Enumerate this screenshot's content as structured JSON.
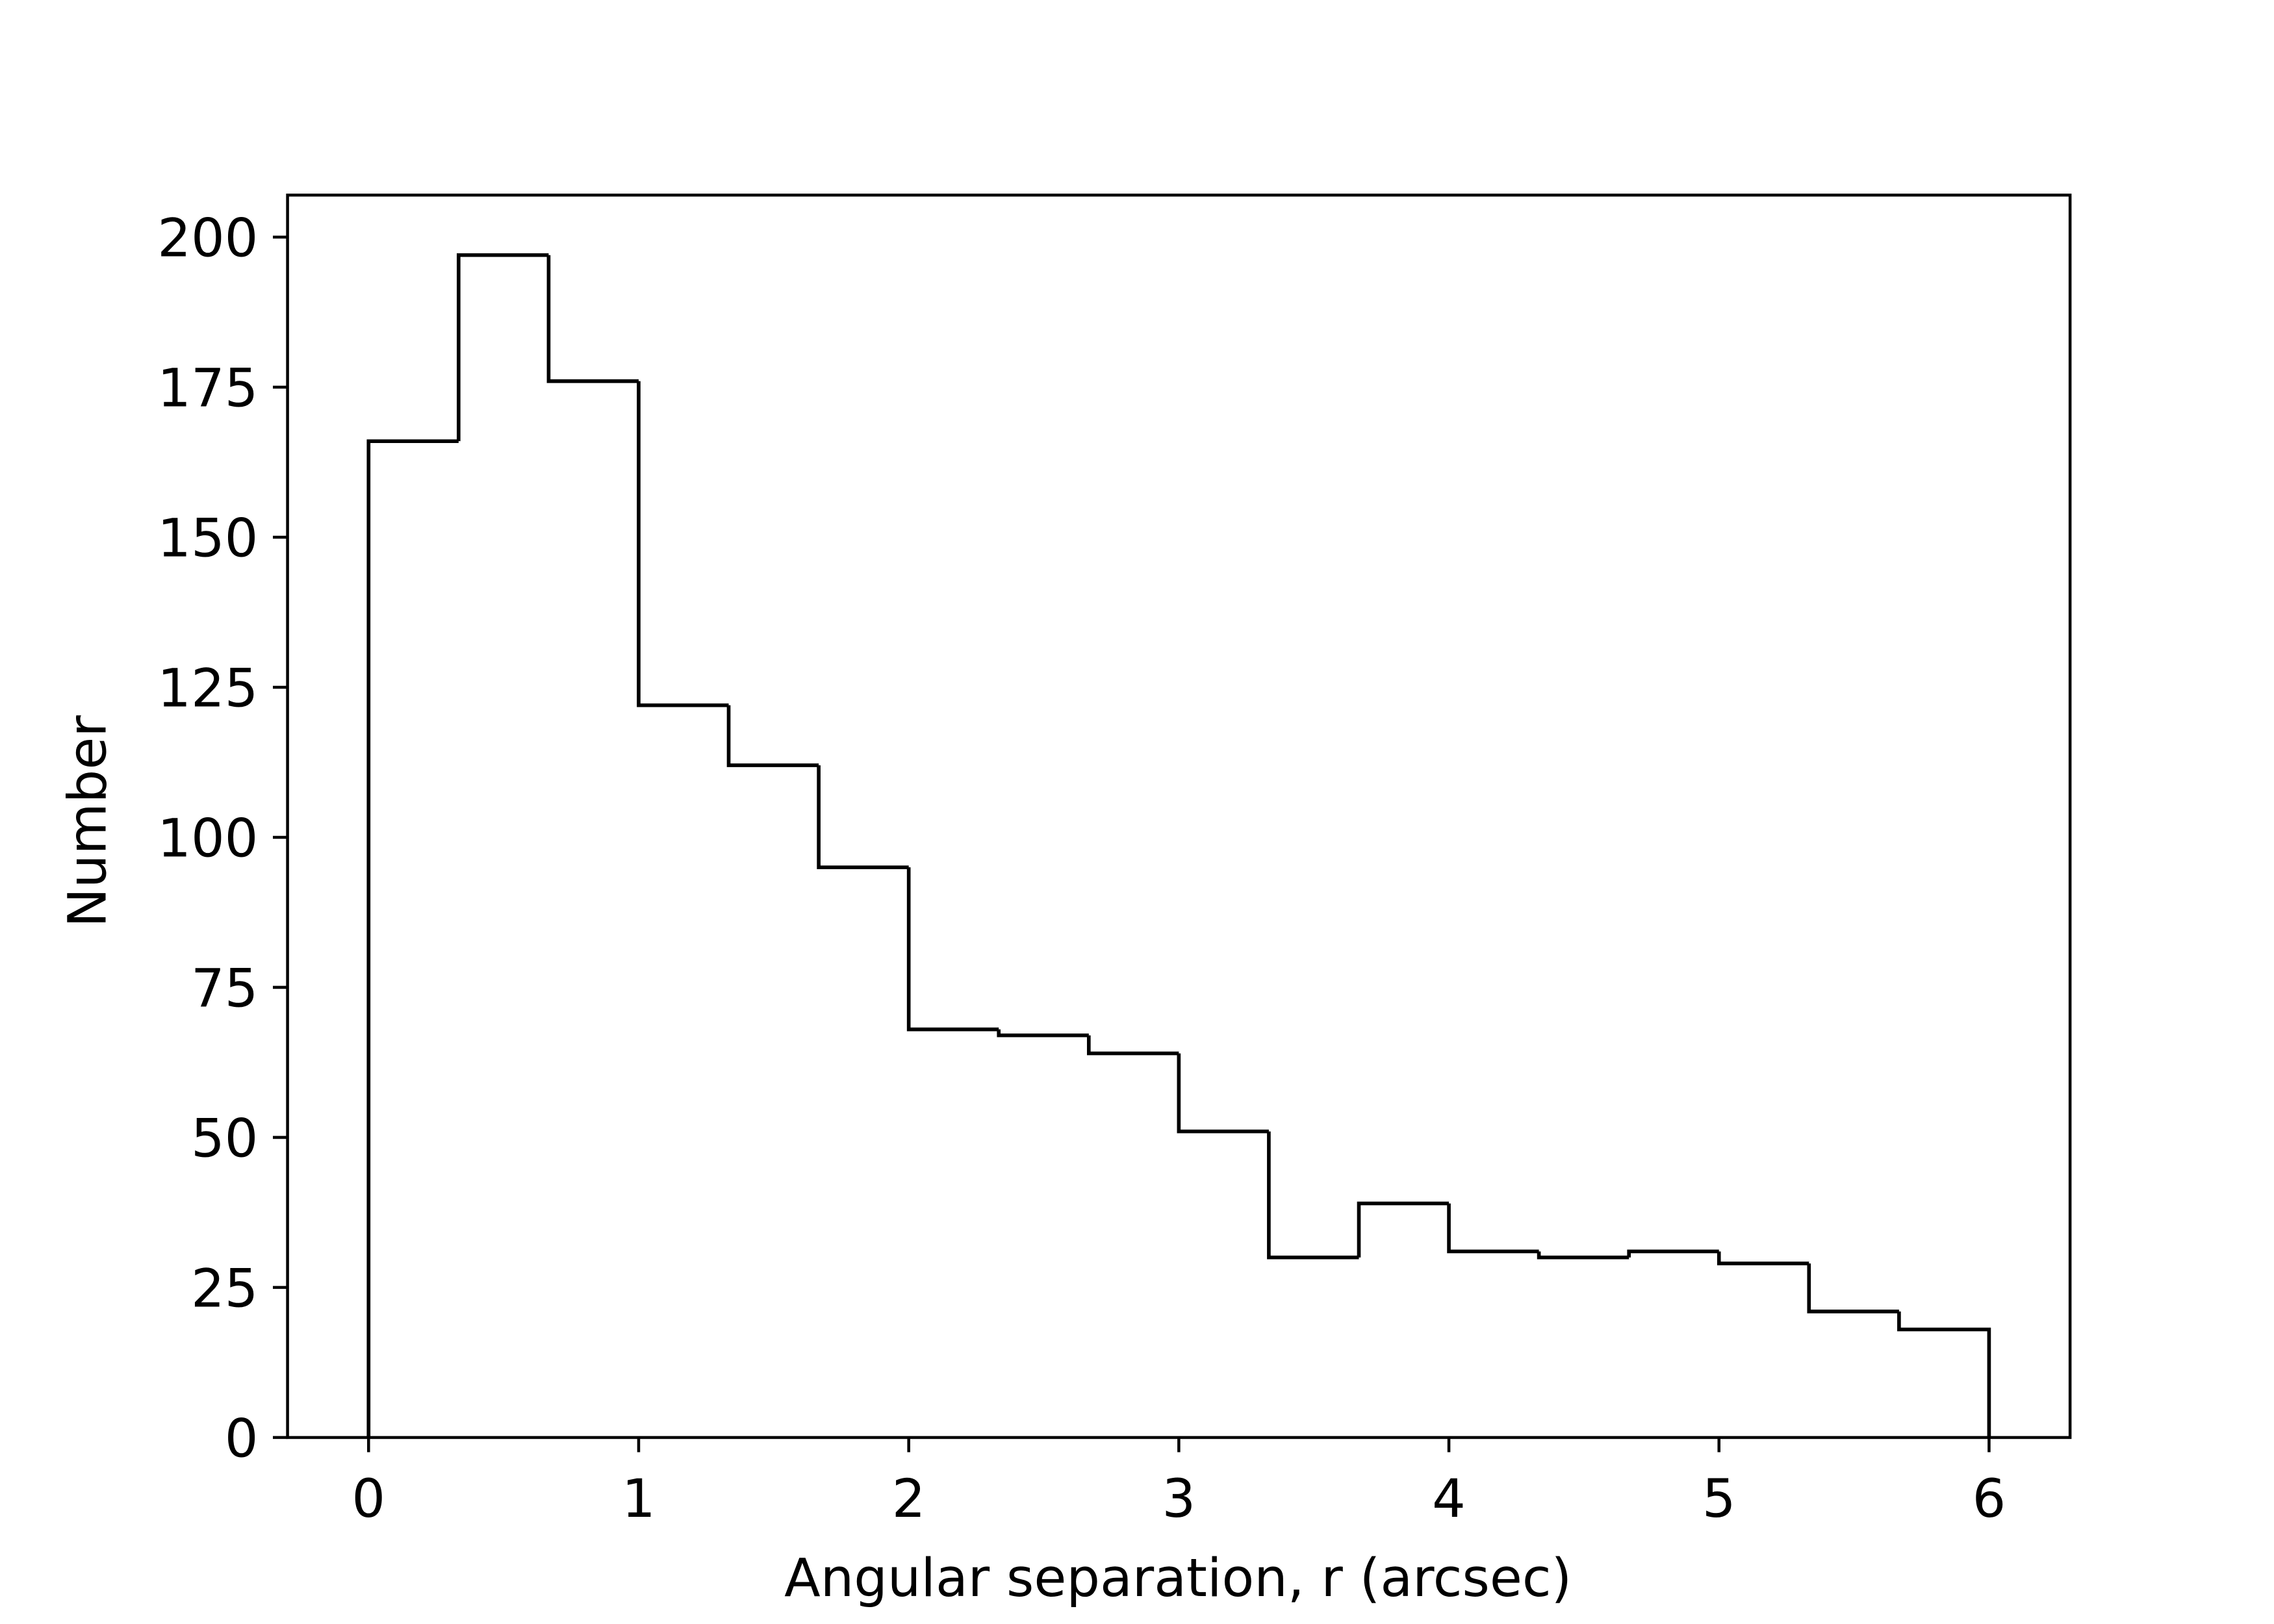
{
  "chart_data": {
    "type": "histogram",
    "xlabel": "Angular separation, r (arcsec)",
    "ylabel": "Number",
    "bins": [
      0,
      0.3333,
      0.6667,
      1,
      1.3333,
      1.6667,
      2,
      2.3333,
      2.6667,
      3,
      3.3333,
      3.6667,
      4,
      4.3333,
      4.6667,
      5,
      5.3333,
      5.6667,
      6
    ],
    "counts": [
      166,
      197,
      176,
      122,
      112,
      95,
      68,
      67,
      64,
      51,
      30,
      39,
      31,
      30,
      31,
      29,
      21,
      18
    ],
    "color": "#000000",
    "xlim": [
      -0.3,
      6.3
    ],
    "xticks": [
      0,
      1,
      2,
      3,
      4,
      5,
      6
    ],
    "ylim": [
      0,
      207
    ],
    "yticks": [
      0,
      25,
      50,
      75,
      100,
      125,
      150,
      175,
      200
    ]
  }
}
